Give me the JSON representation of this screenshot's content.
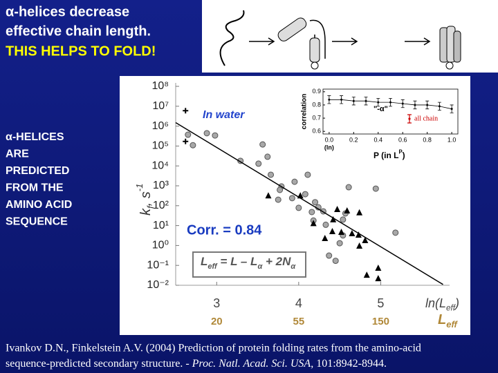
{
  "slide": {
    "title_lines": [
      "α-helices decrease",
      "effective chain length."
    ],
    "highlight": "THIS HELPS TO FOLD!",
    "side_text": [
      "α-HELICES",
      "ARE",
      "PREDICTED",
      "FROM THE",
      "AMINO ACID",
      "SEQUENCE"
    ],
    "citation_line1": "Ivankov D.N., Finkelstein A.V. (2004) Prediction of protein folding rates from the amino-acid",
    "citation_line2": [
      "sequence-predicted secondary structure. - ",
      "Proc. Natl. Acad. Sci. USA",
      ", 101:8942-8944."
    ]
  },
  "chart_data": [
    {
      "type": "scatter",
      "log_scale_y": true,
      "x_label": [
        {
          "text": "ln(L"
        },
        {
          "text": "eff",
          "shift": "sub"
        },
        {
          "text": ")"
        }
      ],
      "y_label": [
        {
          "text": "k"
        },
        {
          "text": "f",
          "shift": "sub"
        },
        {
          "text": ", s"
        },
        {
          "text": "-1",
          "shift": "sup"
        }
      ],
      "x2_label": [
        {
          "text": "L"
        },
        {
          "text": "eff",
          "shift": "sub"
        }
      ],
      "xlim": [
        2.5,
        5.84
      ],
      "xticks": [
        3,
        4,
        5
      ],
      "x2ticks": [
        {
          "value": 3,
          "label": "20"
        },
        {
          "value": 4,
          "label": "55"
        },
        {
          "value": 5,
          "label": "150"
        }
      ],
      "ylim": [
        0.01,
        100000000
      ],
      "yticks": [
        {
          "value": 100000000,
          "label": "10⁸"
        },
        {
          "value": 10000000,
          "label": "10⁷"
        },
        {
          "value": 1000000,
          "label": "10⁶"
        },
        {
          "value": 100000,
          "label": "10⁵"
        },
        {
          "value": 10000,
          "label": "10⁴"
        },
        {
          "value": 1000,
          "label": "10³"
        },
        {
          "value": 100,
          "label": "10²"
        },
        {
          "value": 10,
          "label": "10¹"
        },
        {
          "value": 1,
          "label": "10⁰"
        },
        {
          "value": 0.1,
          "label": "10⁻¹"
        },
        {
          "value": 0.01,
          "label": "10⁻²"
        }
      ],
      "annotations": {
        "in_water": "In water",
        "corr": "Corr. = 0.84",
        "formula": [
          {
            "text": "L"
          },
          {
            "text": "eff",
            "shift": "sub"
          },
          {
            "text": " = L – L"
          },
          {
            "text": "α",
            "shift": "sub"
          },
          {
            "text": " + 2N"
          },
          {
            "text": "α",
            "shift": "sub"
          }
        ]
      },
      "series": [
        {
          "marker": "circle",
          "color": "#a8a8a8",
          "x": [
            2.65,
            2.71,
            2.88,
            2.98,
            3.29,
            3.56,
            3.51,
            3.62,
            3.66,
            3.79,
            3.77,
            3.95,
            4.11,
            3.75,
            3.92,
            4.0,
            4.08,
            4.2,
            4.24,
            4.3,
            4.16,
            4.18,
            4.33,
            4.54,
            4.5,
            4.37,
            4.45,
            4.54,
            4.57,
            4.61,
            4.94,
            5.18
          ],
          "values": [
            370000,
            110000,
            440000,
            340000,
            18000,
            120000,
            13000,
            29000,
            3600,
            930,
            620,
            1600,
            3600,
            200,
            240,
            78,
            380,
            150,
            83,
            52,
            48,
            18,
            11,
            20,
            1.3,
            0.31,
            0.17,
            3.2,
            41,
            850,
            720,
            4.4
          ]
        },
        {
          "marker": "triangle",
          "color": "#000000",
          "x": [
            3.63,
            4.02,
            4.47,
            4.18,
            4.59,
            4.74,
            4.42,
            4.32,
            4.52,
            4.73,
            4.81,
            4.74,
            4.83,
            4.97,
            4.97,
            4.41,
            4.65
          ],
          "values": [
            320,
            320,
            66,
            13,
            56,
            45,
            20,
            2.3,
            4.7,
            3.4,
            1.8,
            0.95,
            0.033,
            0.022,
            0.074,
            5.1,
            4.0
          ]
        },
        {
          "marker": "plus",
          "color": "#000000",
          "x": [
            2.62,
            2.62
          ],
          "values": [
            6000000,
            170000
          ]
        },
        {
          "marker": "line",
          "color": "#000000",
          "x": [
            2.5,
            5.76
          ],
          "values": [
            1500000,
            0.011
          ]
        }
      ]
    },
    {
      "type": "errorbar",
      "y_label": "correlation",
      "x_label": [
        {
          "text": "P (in L"
        },
        {
          "text": "P",
          "shift": "sup"
        },
        {
          "text": ")"
        }
      ],
      "x_note": "(ln)",
      "annotation": "\"-α\"",
      "legend_label": "all chain",
      "legend_color": "#cc0000",
      "xlim": [
        -0.05,
        1.05
      ],
      "xticks": [
        {
          "value": 0,
          "label": "0.0"
        },
        0.2,
        0.4,
        0.6,
        0.8,
        {
          "value": 1,
          "label": "1.0"
        }
      ],
      "ylim": [
        0.58,
        0.92
      ],
      "yticks": [
        0.6,
        0.7,
        0.8,
        0.9
      ],
      "color": "#000000",
      "x": [
        0,
        0.1,
        0.2,
        0.3,
        0.4,
        0.5,
        0.6,
        0.7,
        0.8,
        0.9,
        1.0
      ],
      "values": [
        0.84,
        0.84,
        0.83,
        0.83,
        0.82,
        0.82,
        0.81,
        0.8,
        0.8,
        0.79,
        0.77
      ],
      "errors": [
        0.03,
        0.03,
        0.03,
        0.03,
        0.03,
        0.03,
        0.03,
        0.03,
        0.03,
        0.03,
        0.03
      ]
    }
  ]
}
